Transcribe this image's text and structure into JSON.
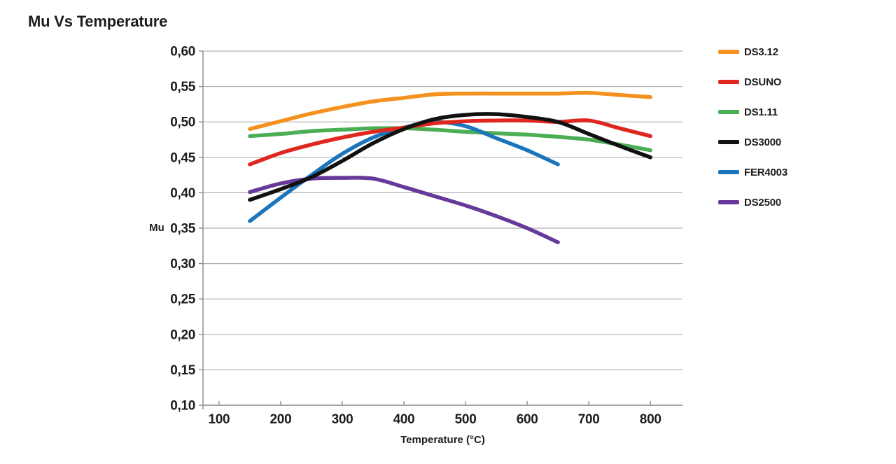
{
  "page": {
    "title": "Mu Vs Temperature"
  },
  "chart_data": {
    "type": "line",
    "title": "Mu Vs Temperature",
    "xlabel": "Temperature (°C)",
    "ylabel": "Mu",
    "xlim": [
      74,
      852
    ],
    "ylim": [
      0.1,
      0.6
    ],
    "x_ticks": [
      100,
      200,
      300,
      400,
      500,
      600,
      700,
      800
    ],
    "y_ticks": [
      0.1,
      0.15,
      0.2,
      0.25,
      0.3,
      0.35,
      0.4,
      0.45,
      0.5,
      0.55,
      0.6
    ],
    "y_tick_labels": [
      "0,10",
      "0,15",
      "0,20",
      "0,25",
      "0,30",
      "0,35",
      "0,40",
      "0,45",
      "0,50",
      "0,55",
      "0,60"
    ],
    "grid": "horizontal",
    "legend_position": "right",
    "series": [
      {
        "name": "DS3.12",
        "color": "#F5911E",
        "x": [
          150,
          200,
          250,
          300,
          350,
          400,
          450,
          500,
          550,
          600,
          650,
          700,
          750,
          800
        ],
        "y": [
          0.49,
          0.501,
          0.512,
          0.521,
          0.529,
          0.534,
          0.539,
          0.54,
          0.54,
          0.54,
          0.54,
          0.541,
          0.538,
          0.535
        ]
      },
      {
        "name": "DSUNO",
        "color": "#E0271F",
        "x": [
          150,
          200,
          250,
          300,
          350,
          400,
          450,
          500,
          550,
          600,
          650,
          700,
          750,
          800
        ],
        "y": [
          0.44,
          0.456,
          0.468,
          0.478,
          0.486,
          0.492,
          0.498,
          0.501,
          0.502,
          0.502,
          0.5,
          0.502,
          0.491,
          0.48
        ]
      },
      {
        "name": "DS1.11",
        "color": "#4BAE55",
        "x": [
          150,
          200,
          250,
          300,
          350,
          400,
          450,
          500,
          550,
          600,
          650,
          700,
          750,
          800
        ],
        "y": [
          0.48,
          0.483,
          0.487,
          0.489,
          0.491,
          0.491,
          0.489,
          0.486,
          0.484,
          0.482,
          0.479,
          0.475,
          0.468,
          0.46
        ]
      },
      {
        "name": "DS3000",
        "color": "#111111",
        "x": [
          150,
          200,
          250,
          300,
          350,
          400,
          450,
          500,
          550,
          600,
          650,
          700,
          750,
          800
        ],
        "y": [
          0.39,
          0.405,
          0.422,
          0.445,
          0.47,
          0.49,
          0.504,
          0.51,
          0.511,
          0.507,
          0.5,
          0.483,
          0.466,
          0.45
        ]
      },
      {
        "name": "FER4003",
        "color": "#1B75BC",
        "x": [
          150,
          200,
          250,
          300,
          350,
          400,
          450,
          500,
          550,
          600,
          650
        ],
        "y": [
          0.36,
          0.393,
          0.425,
          0.455,
          0.478,
          0.492,
          0.5,
          0.494,
          0.477,
          0.46,
          0.44
        ]
      },
      {
        "name": "DS2500",
        "color": "#67399A",
        "x": [
          150,
          200,
          250,
          300,
          350,
          400,
          450,
          500,
          550,
          600,
          650
        ],
        "y": [
          0.401,
          0.413,
          0.42,
          0.421,
          0.42,
          0.408,
          0.395,
          0.382,
          0.367,
          0.35,
          0.33
        ]
      }
    ]
  },
  "style": {
    "grid_color": "#b3b3b3",
    "axis_color": "#8f8f8f",
    "text_color": "#1d1d1b"
  }
}
